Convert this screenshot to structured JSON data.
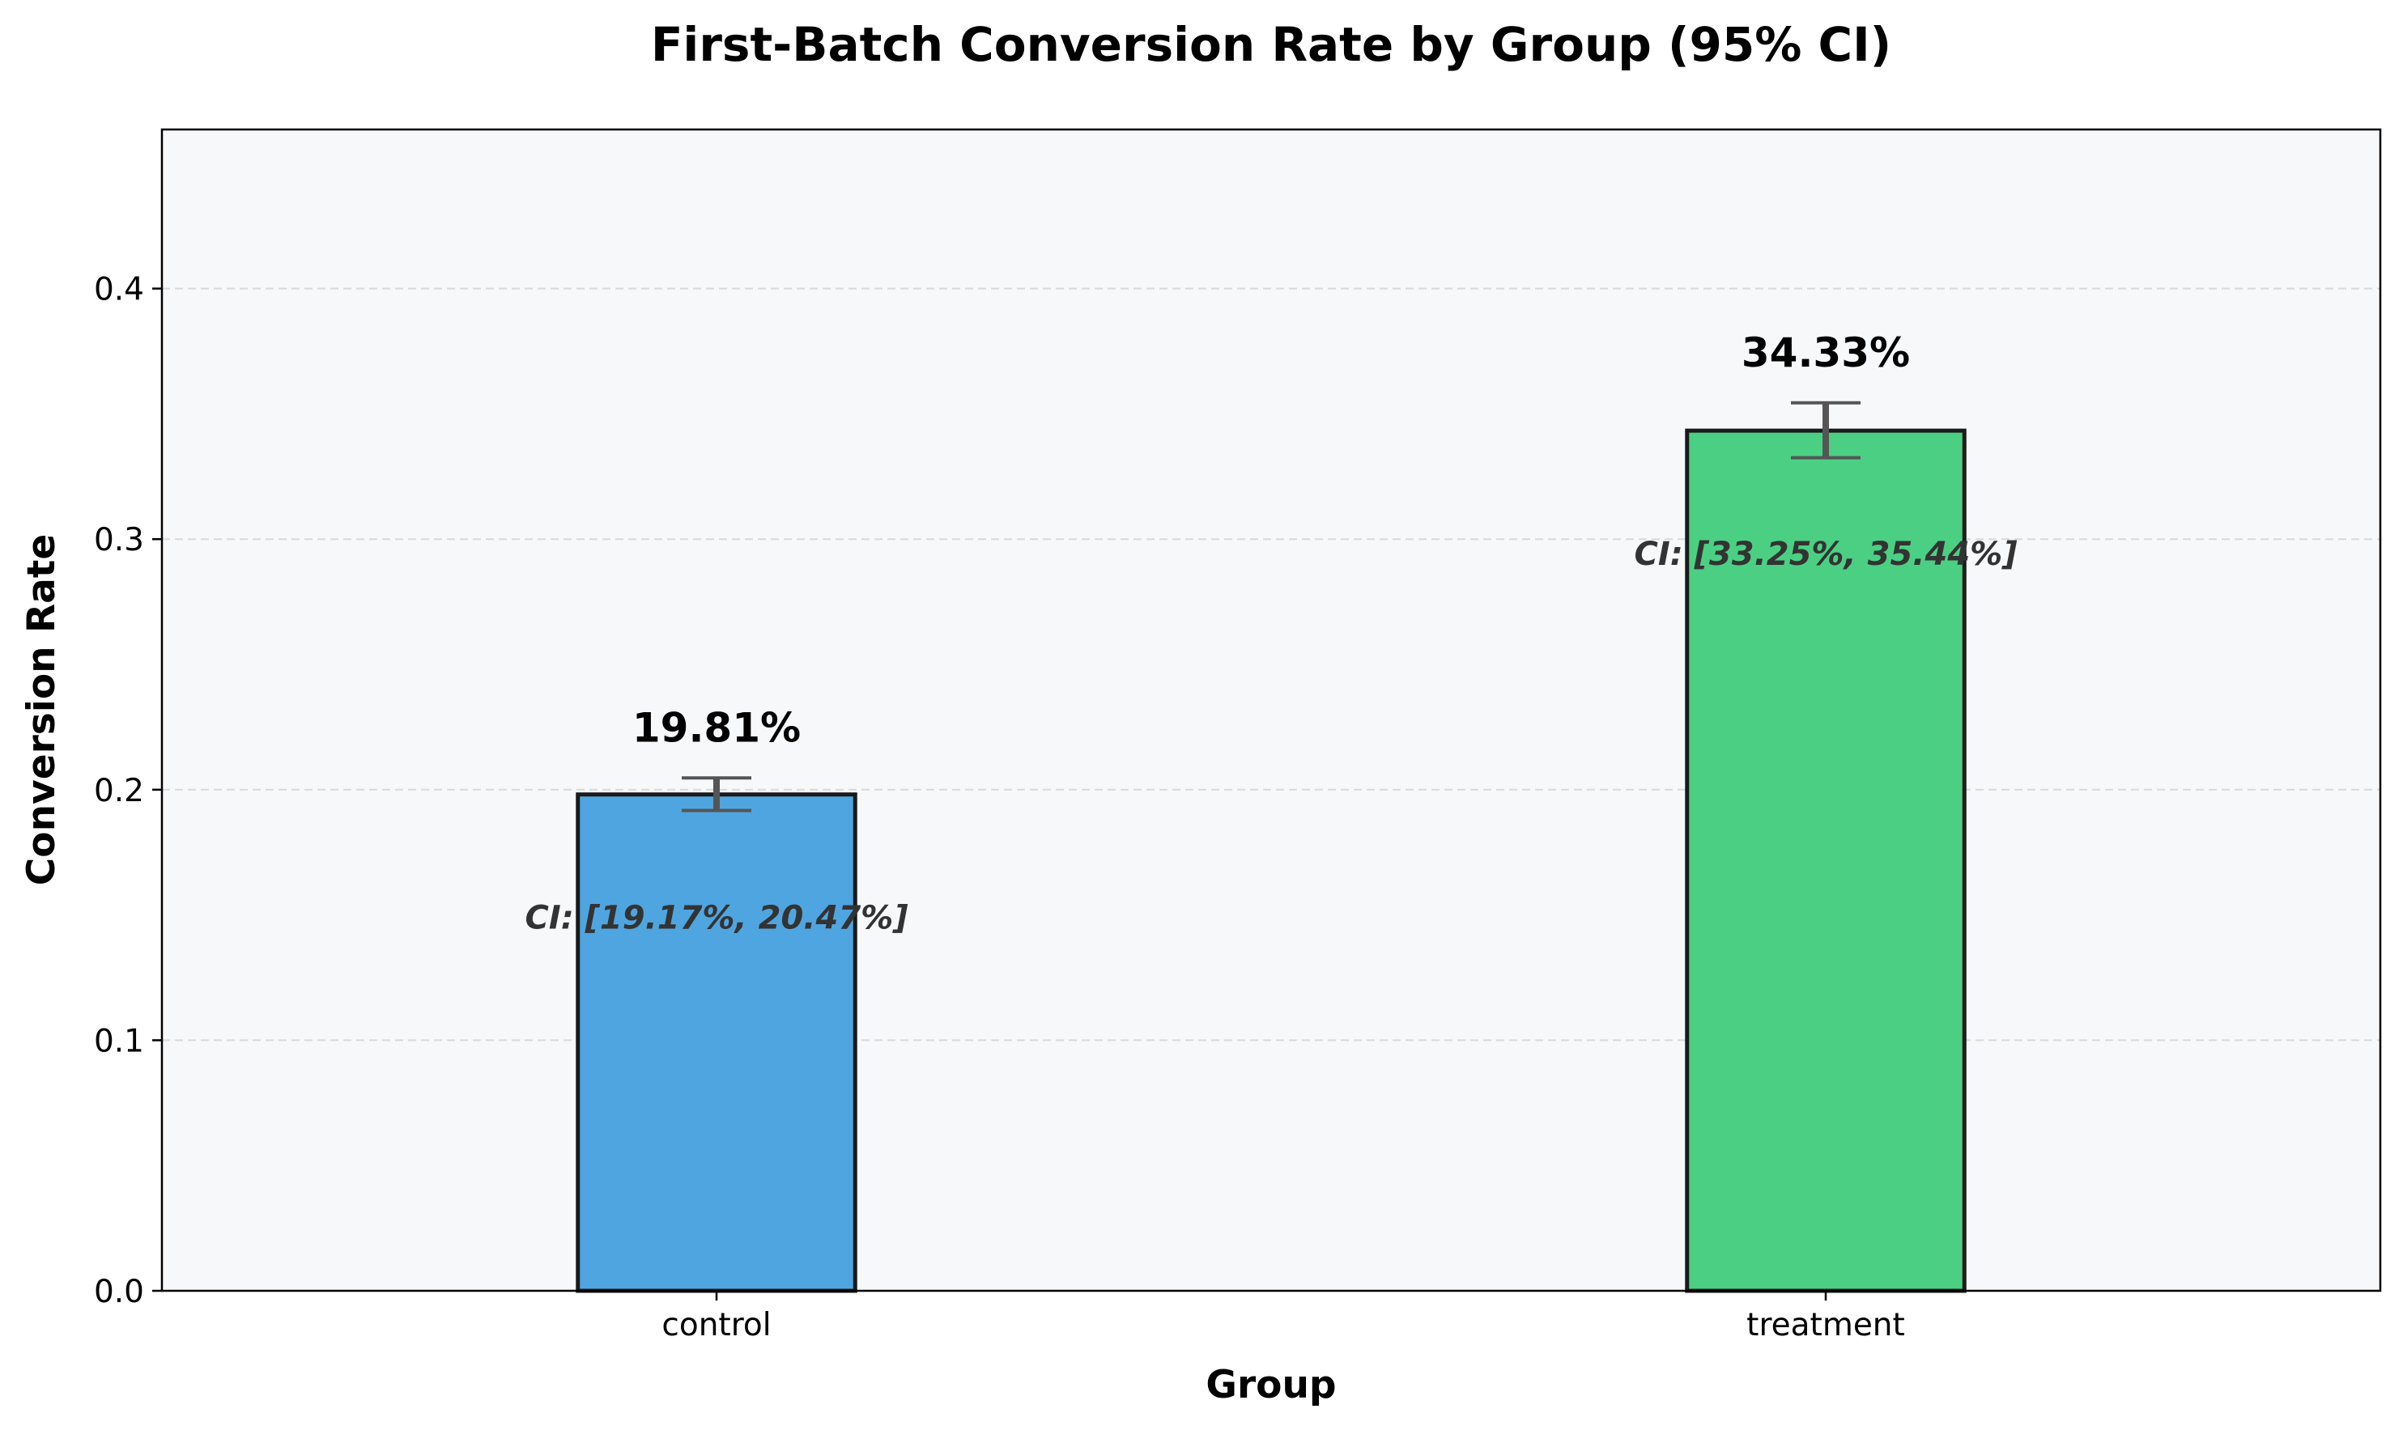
{
  "chart_data": {
    "type": "bar",
    "title": "First-Batch Conversion Rate by Group (95% CI)",
    "xlabel": "Group",
    "ylabel": "Conversion Rate",
    "categories": [
      "control",
      "treatment"
    ],
    "values": [
      0.1981,
      0.3433
    ],
    "value_labels": [
      "19.81%",
      "34.33%"
    ],
    "ci_lower": [
      0.1917,
      0.3325
    ],
    "ci_upper": [
      0.2047,
      0.3544
    ],
    "ci_labels": [
      "CI: [19.17%, 20.47%]",
      "CI: [33.25%, 35.44%]"
    ],
    "colors": [
      "#4fa5df",
      "#4bd083"
    ],
    "edge_color": "#1a1a1a",
    "errorbar_color": "#555555",
    "plot_background": "#f7f8fa",
    "ylim": [
      0,
      0.4635
    ],
    "yticks": [
      0.0,
      0.1,
      0.2,
      0.3,
      0.4
    ],
    "ytick_labels": [
      "0.0",
      "0.1",
      "0.2",
      "0.3",
      "0.4"
    ],
    "grid": "y-dashed",
    "legend": "none"
  }
}
